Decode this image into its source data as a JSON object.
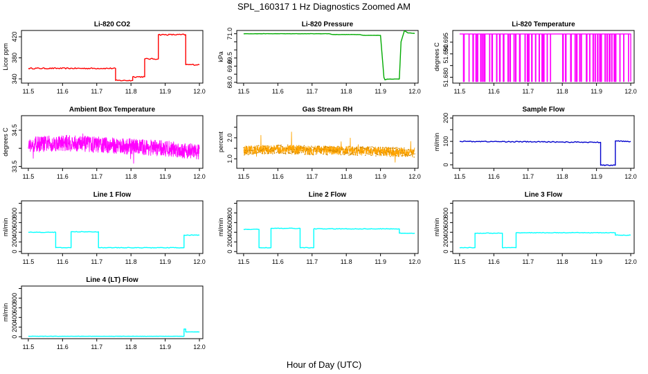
{
  "figure": {
    "title": "SPL_160317  1 Hz Diagnostics Zoomed AM",
    "xlabel": "Hour of Day (UTC)"
  },
  "chart_data": [
    {
      "id": "co2",
      "type": "line",
      "title": "Li-820 CO2",
      "ylabel": "Licor ppm",
      "color": "#ff0000",
      "noise": 1.2,
      "style": "step",
      "xlim": [
        11.48,
        12.01
      ],
      "xticks": [
        11.5,
        11.6,
        11.7,
        11.8,
        11.9,
        12.0
      ],
      "xtick_labels": [
        "11.5",
        "11.6",
        "11.7",
        "11.8",
        "11.9",
        "12.0"
      ],
      "ylim": [
        332,
        432
      ],
      "yticks": [
        340,
        380,
        420
      ],
      "ytick_labels": [
        "340",
        "380",
        "420"
      ],
      "series": [
        {
          "name": "CO2",
          "x": [
            11.5,
            11.755,
            11.755,
            11.805,
            11.805,
            11.84,
            11.84,
            11.88,
            11.88,
            11.96,
            11.96,
            12.0
          ],
          "y": [
            360,
            360,
            337,
            337,
            344,
            344,
            378,
            378,
            424,
            424,
            367,
            367
          ]
        }
      ]
    },
    {
      "id": "pressure",
      "type": "line",
      "title": "Li-820 Pressure",
      "ylabel": "kPa",
      "color": "#00aa00",
      "noise": 0.008,
      "style": "step",
      "xlim": [
        11.48,
        12.01
      ],
      "xticks": [
        11.5,
        11.6,
        11.7,
        11.8,
        11.9,
        12.0
      ],
      "xtick_labels": [
        "11.5",
        "11.6",
        "11.7",
        "11.8",
        "11.9",
        "12.0"
      ],
      "ylim": [
        67.95,
        71.2
      ],
      "yticks": [
        68.0,
        68.5,
        69.0,
        69.5,
        70.0,
        70.5,
        71.0
      ],
      "ytick_labels": [
        "68.0",
        "",
        "69.0",
        "69.5",
        "",
        "",
        "71.0"
      ],
      "series": [
        {
          "name": "Pressure",
          "x": [
            11.5,
            11.75,
            11.76,
            11.84,
            11.85,
            11.9,
            11.91,
            11.913,
            11.92,
            11.955,
            11.96,
            11.97,
            11.98,
            12.0
          ],
          "y": [
            71.0,
            71.0,
            70.95,
            70.95,
            70.9,
            70.9,
            68.3,
            68.15,
            68.2,
            68.2,
            70.5,
            71.2,
            71.05,
            71.02
          ]
        }
      ]
    },
    {
      "id": "li820temp",
      "type": "line",
      "title": "Li-820 Temperature",
      "ylabel": "degrees C",
      "color": "#ff00ff",
      "noise": 0,
      "style": "toggle",
      "xlim": [
        11.48,
        12.01
      ],
      "xticks": [
        11.5,
        11.6,
        11.7,
        11.8,
        11.9,
        12.0
      ],
      "xtick_labels": [
        "11.5",
        "11.6",
        "11.7",
        "11.8",
        "11.9",
        "12.0"
      ],
      "ylim": [
        51.6775,
        51.7
      ],
      "yticks": [
        51.68,
        51.685,
        51.69,
        51.695
      ],
      "ytick_labels": [
        "51.680",
        "",
        "51.690",
        "51.695"
      ],
      "series": [
        {
          "name": "Li-820 Temp",
          "x": [
            11.5,
            12.0
          ],
          "y": [
            51.6782,
            51.6985
          ]
        }
      ]
    },
    {
      "id": "boxtemp",
      "type": "line",
      "title": "Ambient Box Temperature",
      "ylabel": "degrees C",
      "color": "#ff00ff",
      "noise": 0.22,
      "style": "dense",
      "xlim": [
        11.48,
        12.01
      ],
      "xticks": [
        11.5,
        11.6,
        11.7,
        11.8,
        11.9,
        12.0
      ],
      "xtick_labels": [
        "11.5",
        "11.6",
        "11.7",
        "11.8",
        "11.9",
        "12.0"
      ],
      "ylim": [
        33.45,
        34.9
      ],
      "yticks": [
        33.5,
        34.0,
        34.5
      ],
      "ytick_labels": [
        "33.5",
        "",
        "34.5"
      ],
      "series": [
        {
          "name": "Box Temp",
          "x": [
            11.5,
            11.6,
            11.7,
            11.8,
            11.9,
            12.0
          ],
          "y": [
            34.1,
            34.15,
            34.1,
            34.05,
            34.0,
            33.9
          ]
        }
      ]
    },
    {
      "id": "rh",
      "type": "line",
      "title": "Gas Stream RH",
      "ylabel": "percent",
      "color": "#ffa500",
      "noise": 0.22,
      "style": "dense",
      "xlim": [
        11.48,
        12.01
      ],
      "xticks": [
        11.5,
        11.6,
        11.7,
        11.8,
        11.9,
        12.0
      ],
      "xtick_labels": [
        "11.5",
        "11.6",
        "11.7",
        "11.8",
        "11.9",
        "12.0"
      ],
      "ylim": [
        0.55,
        3.05
      ],
      "yticks": [
        1.0,
        1.5,
        2.0,
        2.5
      ],
      "ytick_labels": [
        "1.0",
        "",
        "2.0",
        ""
      ],
      "series": [
        {
          "name": "RH",
          "x": [
            11.5,
            11.6,
            11.7,
            11.8,
            11.9,
            12.0
          ],
          "y": [
            1.4,
            1.45,
            1.4,
            1.4,
            1.35,
            1.3
          ]
        }
      ]
    },
    {
      "id": "sampleflow",
      "type": "line",
      "title": "Sample Flow",
      "ylabel": "ml/min",
      "color": "#0000cc",
      "noise": 2,
      "style": "step",
      "xlim": [
        11.48,
        12.01
      ],
      "xticks": [
        11.5,
        11.6,
        11.7,
        11.8,
        11.9,
        12.0
      ],
      "xtick_labels": [
        "11.5",
        "11.6",
        "11.7",
        "11.8",
        "11.9",
        "12.0"
      ],
      "ylim": [
        -15,
        210
      ],
      "yticks": [
        0,
        50,
        100,
        150,
        200
      ],
      "ytick_labels": [
        "0",
        "",
        "100",
        "",
        "200"
      ],
      "series": [
        {
          "name": "Sample Flow",
          "x": [
            11.5,
            11.75,
            11.9,
            11.912,
            11.912,
            11.955,
            11.955,
            12.0
          ],
          "y": [
            100,
            98,
            96,
            96,
            -2,
            -2,
            102,
            100
          ]
        }
      ]
    },
    {
      "id": "line1",
      "type": "line",
      "title": "Line 1 Flow",
      "ylabel": "ml/min",
      "color": "#00ffff",
      "noise": 6,
      "style": "step",
      "xlim": [
        11.48,
        12.01
      ],
      "xticks": [
        11.5,
        11.6,
        11.7,
        11.8,
        11.9,
        12.0
      ],
      "xtick_labels": [
        "11.5",
        "11.6",
        "11.7",
        "11.8",
        "11.9",
        "12.0"
      ],
      "ylim": [
        -40,
        1050
      ],
      "yticks": [
        0,
        200,
        400,
        600,
        800,
        1000
      ],
      "ytick_labels": [
        "0",
        "200",
        "400",
        "600",
        "800",
        ""
      ],
      "series": [
        {
          "name": "Line 1",
          "x": [
            11.5,
            11.58,
            11.58,
            11.625,
            11.625,
            11.705,
            11.705,
            11.955,
            11.955,
            12.0
          ],
          "y": [
            400,
            400,
            80,
            80,
            410,
            410,
            80,
            80,
            340,
            340
          ]
        }
      ]
    },
    {
      "id": "line2",
      "type": "line",
      "title": "Line 2 Flow",
      "ylabel": "ml/min",
      "color": "#00ffff",
      "noise": 6,
      "style": "step",
      "xlim": [
        11.48,
        12.01
      ],
      "xticks": [
        11.5,
        11.6,
        11.7,
        11.8,
        11.9,
        12.0
      ],
      "xtick_labels": [
        "11.5",
        "11.6",
        "11.7",
        "11.8",
        "11.9",
        "12.0"
      ],
      "ylim": [
        -40,
        1050
      ],
      "yticks": [
        0,
        200,
        400,
        600,
        800,
        1000
      ],
      "ytick_labels": [
        "0",
        "200",
        "400",
        "600",
        "800",
        ""
      ],
      "series": [
        {
          "name": "Line 2",
          "x": [
            11.5,
            11.545,
            11.545,
            11.58,
            11.58,
            11.665,
            11.665,
            11.705,
            11.705,
            11.955,
            11.955,
            12.0
          ],
          "y": [
            460,
            460,
            80,
            80,
            480,
            480,
            80,
            80,
            470,
            470,
            380,
            380
          ]
        }
      ]
    },
    {
      "id": "line3",
      "type": "line",
      "title": "Line 3 Flow",
      "ylabel": "ml/min",
      "color": "#00ffff",
      "noise": 6,
      "style": "step",
      "xlim": [
        11.48,
        12.01
      ],
      "xticks": [
        11.5,
        11.6,
        11.7,
        11.8,
        11.9,
        12.0
      ],
      "xtick_labels": [
        "11.5",
        "11.6",
        "11.7",
        "11.8",
        "11.9",
        "12.0"
      ],
      "ylim": [
        -40,
        1050
      ],
      "yticks": [
        0,
        200,
        400,
        600,
        800,
        1000
      ],
      "ytick_labels": [
        "0",
        "200",
        "400",
        "600",
        "800",
        ""
      ],
      "series": [
        {
          "name": "Line 3",
          "x": [
            11.5,
            11.545,
            11.545,
            11.625,
            11.625,
            11.665,
            11.665,
            11.955,
            11.955,
            12.0
          ],
          "y": [
            80,
            80,
            380,
            380,
            80,
            80,
            390,
            390,
            340,
            340
          ]
        }
      ]
    },
    {
      "id": "line4",
      "type": "line",
      "title": "Line 4 (LT) Flow",
      "ylabel": "ml/min",
      "color": "#00ffff",
      "noise": 2,
      "style": "step",
      "xlim": [
        11.48,
        12.01
      ],
      "xticks": [
        11.5,
        11.6,
        11.7,
        11.8,
        11.9,
        12.0
      ],
      "xtick_labels": [
        "11.5",
        "11.6",
        "11.7",
        "11.8",
        "11.9",
        "12.0"
      ],
      "ylim": [
        -40,
        1050
      ],
      "yticks": [
        0,
        200,
        400,
        600,
        800,
        1000
      ],
      "ytick_labels": [
        "0",
        "200",
        "400",
        "600",
        "800",
        ""
      ],
      "series": [
        {
          "name": "Line 4 (LT)",
          "x": [
            11.5,
            11.955,
            11.955,
            11.96,
            11.96,
            12.0
          ],
          "y": [
            10,
            10,
            160,
            160,
            100,
            100
          ]
        }
      ]
    }
  ]
}
